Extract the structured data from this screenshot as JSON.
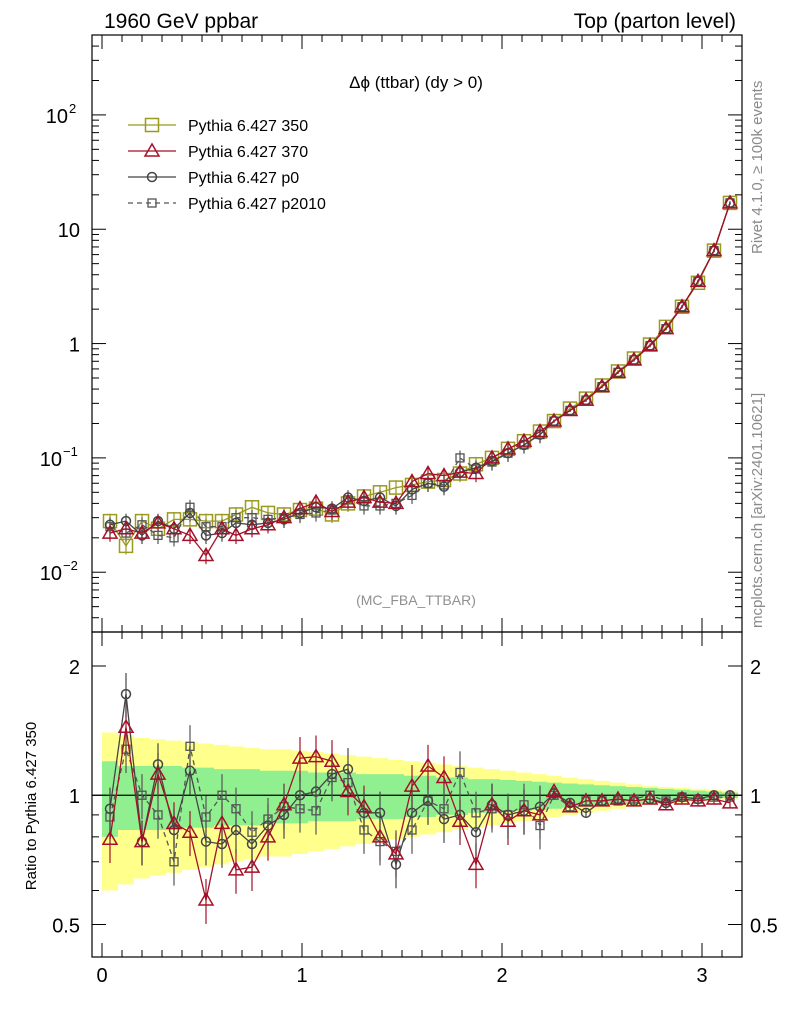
{
  "header": {
    "left": "1960 GeV ppbar",
    "right": "Top (parton level)"
  },
  "side": {
    "rivet": "Rivet 4.1.0, ≥ 100k events",
    "mcplots": "mcplots.cern.ch [arXiv:2401.10621]"
  },
  "chart_data": [
    {
      "type": "line",
      "panel": "main",
      "title": "Δϕ (ttbar) (dy > 0)",
      "watermark": "(MC_FBA_TTBAR)",
      "yscale": "log",
      "xlim": [
        -0.05,
        3.2
      ],
      "ylim": [
        0.003,
        500
      ],
      "x_ticks": [
        0,
        1,
        2,
        3
      ],
      "y_tick_labels": [
        {
          "value": 0.01,
          "base": "10",
          "exp": "−2"
        },
        {
          "value": 0.1,
          "base": "10",
          "exp": "−1"
        },
        {
          "value": 1,
          "base": "1",
          "exp": ""
        },
        {
          "value": 10,
          "base": "10",
          "exp": ""
        },
        {
          "value": 100,
          "base": "10",
          "exp": "2"
        }
      ],
      "x": [
        0.04,
        0.12,
        0.2,
        0.28,
        0.36,
        0.44,
        0.52,
        0.6,
        0.67,
        0.75,
        0.83,
        0.91,
        0.99,
        1.07,
        1.15,
        1.23,
        1.31,
        1.39,
        1.47,
        1.55,
        1.63,
        1.71,
        1.79,
        1.87,
        1.95,
        2.03,
        2.11,
        2.19,
        2.26,
        2.34,
        2.42,
        2.5,
        2.58,
        2.66,
        2.74,
        2.82,
        2.9,
        2.98,
        3.06,
        3.14
      ],
      "series": [
        {
          "name": "Pythia 6.427 350",
          "color": "#999a1f",
          "marker": "square-open",
          "dash": "solid",
          "values": [
            0.028,
            0.017,
            0.028,
            0.024,
            0.029,
            0.029,
            0.028,
            0.028,
            0.032,
            0.037,
            0.033,
            0.032,
            0.035,
            0.036,
            0.032,
            0.04,
            0.046,
            0.05,
            0.055,
            0.058,
            0.062,
            0.064,
            0.073,
            0.088,
            0.1,
            0.12,
            0.14,
            0.17,
            0.21,
            0.27,
            0.33,
            0.43,
            0.57,
            0.74,
            0.98,
            1.4,
            2.1,
            3.4,
            6.5,
            17.0
          ]
        },
        {
          "name": "Pythia 6.427 370",
          "color": "#a51028",
          "marker": "triangle-open",
          "dash": "solid",
          "values": [
            0.022,
            0.024,
            0.022,
            0.027,
            0.024,
            0.021,
            0.014,
            0.024,
            0.021,
            0.024,
            0.026,
            0.03,
            0.036,
            0.041,
            0.034,
            0.041,
            0.045,
            0.041,
            0.04,
            0.062,
            0.073,
            0.07,
            0.075,
            0.073,
            0.1,
            0.12,
            0.14,
            0.17,
            0.21,
            0.26,
            0.32,
            0.42,
            0.56,
            0.72,
            0.96,
            1.35,
            2.1,
            3.5,
            6.5,
            17.0
          ]
        },
        {
          "name": "Pythia 6.427 p0",
          "color": "#454545",
          "marker": "circle-open",
          "dash": "solid",
          "values": [
            0.026,
            0.028,
            0.021,
            0.028,
            0.024,
            0.033,
            0.021,
            0.022,
            0.027,
            0.026,
            0.027,
            0.029,
            0.033,
            0.037,
            0.036,
            0.045,
            0.042,
            0.045,
            0.038,
            0.053,
            0.06,
            0.056,
            0.075,
            0.082,
            0.094,
            0.11,
            0.13,
            0.16,
            0.21,
            0.26,
            0.32,
            0.42,
            0.56,
            0.72,
            0.96,
            1.35,
            2.1,
            3.5,
            6.5,
            17.0
          ]
        },
        {
          "name": "Pythia 6.427 p2010",
          "color": "#555555",
          "marker": "square-small",
          "dash": "dashed",
          "values": [
            0.025,
            0.022,
            0.026,
            0.021,
            0.02,
            0.037,
            0.025,
            0.025,
            0.03,
            0.03,
            0.029,
            0.03,
            0.032,
            0.033,
            0.035,
            0.043,
            0.038,
            0.038,
            0.04,
            0.047,
            0.06,
            0.058,
            0.1,
            0.08,
            0.092,
            0.11,
            0.13,
            0.16,
            0.21,
            0.26,
            0.32,
            0.42,
            0.56,
            0.72,
            0.96,
            1.35,
            2.1,
            3.5,
            6.5,
            17.0
          ]
        }
      ]
    },
    {
      "type": "line",
      "panel": "ratio",
      "ylabel": "Ratio to Pythia 6.427 350",
      "yscale": "log",
      "xlim": [
        -0.05,
        3.2
      ],
      "ylim": [
        0.42,
        2.4
      ],
      "y_ticks": [
        0.5,
        1,
        2
      ],
      "x_ticks": [
        0,
        1,
        2,
        3
      ],
      "x": [
        0.04,
        0.12,
        0.2,
        0.28,
        0.36,
        0.44,
        0.52,
        0.6,
        0.67,
        0.75,
        0.83,
        0.91,
        0.99,
        1.07,
        1.15,
        1.23,
        1.31,
        1.39,
        1.47,
        1.55,
        1.63,
        1.71,
        1.79,
        1.87,
        1.95,
        2.03,
        2.11,
        2.19,
        2.26,
        2.34,
        2.42,
        2.5,
        2.58,
        2.66,
        2.74,
        2.82,
        2.9,
        2.98,
        3.06,
        3.14
      ],
      "band_inner": [
        0.2,
        0.17,
        0.17,
        0.17,
        0.17,
        0.16,
        0.16,
        0.15,
        0.15,
        0.15,
        0.14,
        0.14,
        0.14,
        0.13,
        0.13,
        0.13,
        0.12,
        0.12,
        0.12,
        0.11,
        0.11,
        0.1,
        0.1,
        0.09,
        0.09,
        0.085,
        0.08,
        0.075,
        0.07,
        0.065,
        0.06,
        0.055,
        0.05,
        0.045,
        0.04,
        0.035,
        0.03,
        0.025,
        0.02,
        0.015
      ],
      "band_outer": [
        0.4,
        0.38,
        0.36,
        0.35,
        0.34,
        0.33,
        0.32,
        0.31,
        0.3,
        0.29,
        0.28,
        0.28,
        0.27,
        0.26,
        0.25,
        0.24,
        0.23,
        0.22,
        0.21,
        0.2,
        0.19,
        0.18,
        0.17,
        0.16,
        0.15,
        0.14,
        0.13,
        0.12,
        0.11,
        0.1,
        0.09,
        0.08,
        0.07,
        0.06,
        0.05,
        0.045,
        0.04,
        0.035,
        0.03,
        0.025
      ],
      "series": [
        {
          "name": "Pythia 6.427 370",
          "color": "#a51028",
          "marker": "triangle-open",
          "dash": "solid",
          "values": [
            0.79,
            1.44,
            0.78,
            1.12,
            0.86,
            0.82,
            0.57,
            0.86,
            0.67,
            0.68,
            0.8,
            0.95,
            1.22,
            1.23,
            1.2,
            1.02,
            0.94,
            0.8,
            0.73,
            1.05,
            1.17,
            1.1,
            0.87,
            0.69,
            0.95,
            0.87,
            0.92,
            0.9,
            1.02,
            0.94,
            0.97,
            0.97,
            0.98,
            0.97,
            0.98,
            0.95,
            0.98,
            0.97,
            0.98,
            0.96
          ]
        },
        {
          "name": "Pythia 6.427 p0",
          "color": "#454545",
          "marker": "circle-open",
          "dash": "solid",
          "values": [
            0.93,
            1.72,
            0.78,
            1.18,
            0.83,
            1.14,
            0.78,
            0.77,
            0.83,
            0.77,
            0.85,
            0.9,
            1.0,
            1.02,
            1.12,
            1.15,
            0.91,
            0.91,
            0.69,
            0.91,
            0.97,
            0.88,
            0.9,
            0.82,
            0.95,
            0.9,
            0.92,
            0.94,
            1.01,
            0.96,
            0.91,
            0.97,
            0.98,
            0.97,
            0.98,
            0.96,
            0.99,
            0.98,
            1.0,
            1.0
          ]
        },
        {
          "name": "Pythia 6.427 p2010",
          "color": "#555555",
          "marker": "square-small",
          "dash": "dashed",
          "values": [
            0.89,
            1.28,
            1.0,
            0.9,
            0.7,
            1.3,
            0.89,
            1.0,
            0.93,
            0.82,
            0.88,
            0.94,
            0.93,
            0.92,
            1.1,
            1.07,
            0.83,
            0.78,
            0.74,
            0.83,
            0.97,
            0.93,
            1.13,
            0.91,
            0.93,
            0.9,
            0.95,
            0.85,
            1.0,
            0.94,
            0.97,
            0.97,
            0.97,
            0.98,
            1.0,
            0.97,
            0.99,
            0.98,
            0.99,
            0.99
          ]
        }
      ]
    }
  ]
}
